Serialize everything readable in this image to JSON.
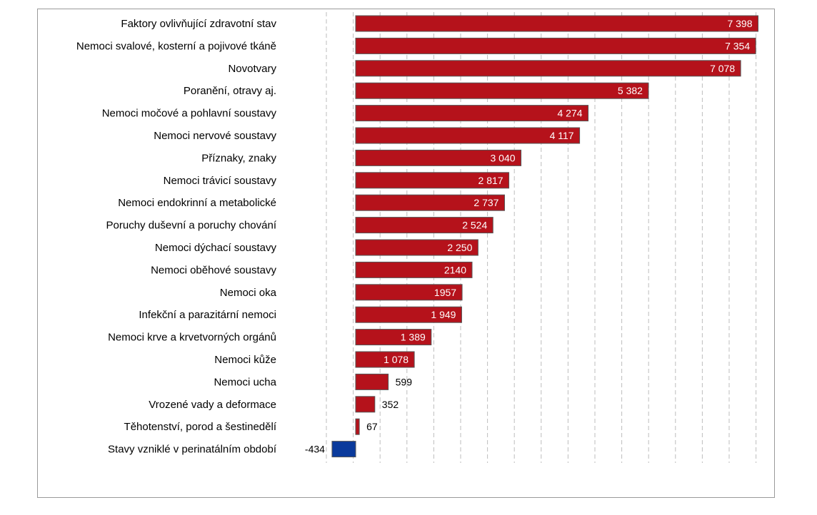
{
  "chart_data": {
    "type": "bar",
    "orientation": "horizontal",
    "categories": [
      "Faktory ovlivňující zdravotní stav",
      "Nemoci svalové, kosterní a pojivové tkáně",
      "Novotvary",
      "Poranění, otravy aj.",
      "Nemoci močové a pohlavní soustavy",
      "Nemoci nervové soustavy",
      "Příznaky, znaky",
      "Nemoci trávicí soustavy",
      "Nemoci endokrinní a metabolické",
      "Poruchy duševní a poruchy chování",
      "Nemoci dýchací soustavy",
      "Nemoci oběhové soustavy",
      "Nemoci oka",
      "Infekční a parazitární nemoci",
      "Nemoci krve a krvetvorných orgánů",
      "Nemoci kůže",
      "Nemoci ucha",
      "Vrozené vady a deformace",
      "Těhotenství, porod a šestinedělí",
      "Stavy vzniklé v perinatálním období"
    ],
    "values": [
      7398,
      7354,
      7078,
      5382,
      4274,
      4117,
      3040,
      2817,
      2737,
      2524,
      2250,
      2140,
      1957,
      1949,
      1389,
      1078,
      599,
      352,
      67,
      -434
    ],
    "data_labels": [
      "7 398",
      "7 354",
      "7 078",
      "5 382",
      "4 274",
      "4 117",
      "3 040",
      "2 817",
      "2 737",
      "2 524",
      "2 250",
      "2140",
      "1957",
      "1 949",
      "1 389",
      "1 078",
      "599",
      "352",
      "67",
      "-434"
    ],
    "xlim": [
      -434,
      7398
    ],
    "grid": true,
    "legend": "none",
    "colors": {
      "positive": "#b5121b",
      "negative": "#0a3a9c",
      "bar_edge": "#555555"
    }
  }
}
